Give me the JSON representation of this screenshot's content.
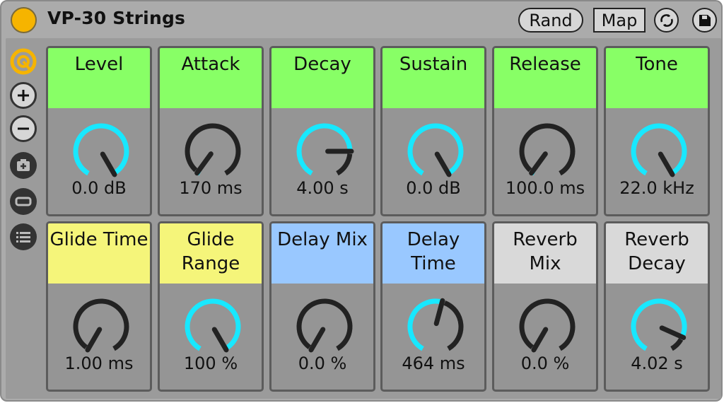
{
  "header": {
    "title": "VP-30 Strings",
    "rand_label": "Rand",
    "map_label": "Map",
    "icons": [
      "device-on-icon",
      "rand",
      "map",
      "hot-swap-icon",
      "save-icon"
    ]
  },
  "sidebar": {
    "icons": [
      "macro-view-icon",
      "add-macro-icon",
      "remove-macro-icon",
      "add-variation-icon",
      "show-variations-icon",
      "list-icon"
    ]
  },
  "colors": {
    "green": "#88ff66",
    "yellow": "#f5f57a",
    "blue": "#99c8ff",
    "gray": "#d9d9d9",
    "accent": "#18e8ff",
    "knob_track": "#222222",
    "device_on": "#f6b400"
  },
  "macros": [
    {
      "label": "Level",
      "value": "0.0 dB",
      "fraction": 1.0,
      "color": "green"
    },
    {
      "label": "Attack",
      "value": "170 ms",
      "fraction": 0.02,
      "color": "green"
    },
    {
      "label": "Decay",
      "value": "4.00 s",
      "fraction": 0.8,
      "color": "green"
    },
    {
      "label": "Sustain",
      "value": "0.0 dB",
      "fraction": 1.0,
      "color": "green"
    },
    {
      "label": "Release",
      "value": "100.0 ms",
      "fraction": 0.02,
      "color": "green"
    },
    {
      "label": "Tone",
      "value": "22.0 kHz",
      "fraction": 1.0,
      "color": "green"
    },
    {
      "label": "Glide Time",
      "value": "1.00 ms",
      "fraction": 0.0,
      "color": "yellow"
    },
    {
      "label": "Glide Range",
      "value": "100 %",
      "fraction": 1.0,
      "color": "yellow"
    },
    {
      "label": "Delay Mix",
      "value": "0.0 %",
      "fraction": 0.0,
      "color": "blue"
    },
    {
      "label": "Delay Time",
      "value": "464 ms",
      "fraction": 0.55,
      "color": "blue"
    },
    {
      "label": "Reverb Mix",
      "value": "0.0 %",
      "fraction": 0.0,
      "color": "gray"
    },
    {
      "label": "Reverb Decay",
      "value": "4.02 s",
      "fraction": 0.88,
      "color": "gray"
    }
  ]
}
